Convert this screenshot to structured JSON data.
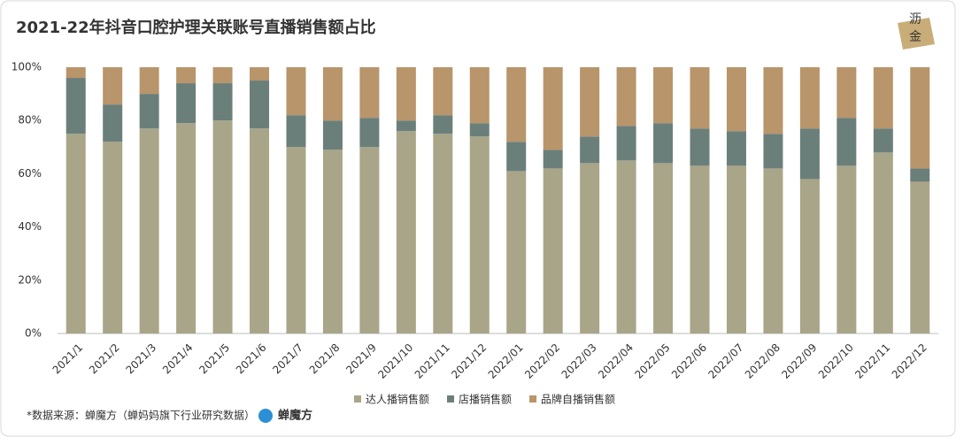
{
  "chart_data": {
    "type": "stacked-bar",
    "title": "2021-22年抖音口腔护理关联账号直播销售额占比",
    "categories": [
      "2021/1",
      "2021/2",
      "2021/3",
      "2021/4",
      "2021/5",
      "2021/6",
      "2021/7",
      "2021/8",
      "2021/9",
      "2021/10",
      "2021/11",
      "2021/12",
      "2022/01",
      "2022/02",
      "2022/03",
      "2022/04",
      "2022/05",
      "2022/06",
      "2022/07",
      "2022/08",
      "2022/09",
      "2022/10",
      "2022/11",
      "2022/12"
    ],
    "series": [
      {
        "name": "达人播销售额",
        "color": "#a9a588",
        "values": [
          75,
          72,
          77,
          79,
          80,
          77,
          70,
          69,
          70,
          76,
          75,
          74,
          61,
          62,
          64,
          65,
          64,
          63,
          63,
          62,
          58,
          63,
          68,
          57
        ]
      },
      {
        "name": "店播销售额",
        "color": "#6b7f7a",
        "values": [
          21,
          14,
          13,
          15,
          14,
          18,
          12,
          11,
          11,
          4,
          7,
          5,
          11,
          7,
          10,
          13,
          15,
          14,
          13,
          13,
          19,
          18,
          9,
          5
        ]
      },
      {
        "name": "品牌自播销售额",
        "color": "#b8956a",
        "values": [
          4,
          14,
          10,
          6,
          6,
          5,
          18,
          20,
          19,
          20,
          18,
          21,
          28,
          31,
          26,
          22,
          21,
          23,
          24,
          25,
          23,
          19,
          23,
          38
        ]
      }
    ],
    "ylim": [
      0,
      100
    ],
    "yticks": [
      {
        "value": 0,
        "label": "0%"
      },
      {
        "value": 20,
        "label": "20%"
      },
      {
        "value": 40,
        "label": "40%"
      },
      {
        "value": 60,
        "label": "60%"
      },
      {
        "value": 80,
        "label": "80%"
      },
      {
        "value": 100,
        "label": "100%"
      }
    ],
    "legend": "bottom"
  },
  "footer": {
    "source": "*数据来源：蝉魔方（蝉妈妈旗下行业研究数据）",
    "brand": "蝉魔方"
  },
  "badge": {
    "line1": "沥",
    "line2": "金"
  }
}
